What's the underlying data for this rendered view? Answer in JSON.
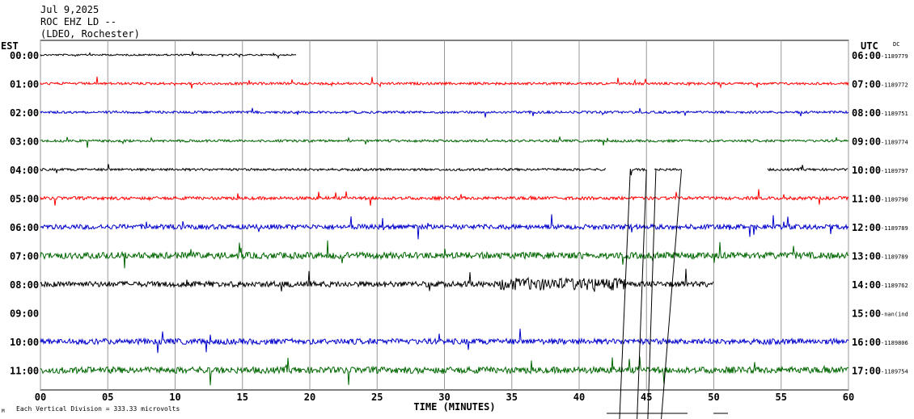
{
  "header": {
    "date": "Jul 9,2025",
    "station": "ROC EHZ LD --",
    "network": "(LDEO, Rochester)"
  },
  "labels": {
    "left_tz": "EST",
    "right_tz": "UTC",
    "dc": "DC",
    "xlabel": "TIME (MINUTES)",
    "scale_note": "Each Vertical Division =  333.33 microvolts",
    "corner_mark": "M"
  },
  "chart_data": {
    "type": "line",
    "title": "",
    "xlabel": "TIME (MINUTES)",
    "xlim": [
      0,
      60
    ],
    "x_ticks": [
      "00",
      "05",
      "10",
      "15",
      "20",
      "25",
      "30",
      "35",
      "40",
      "45",
      "50",
      "55",
      "60"
    ],
    "grid": true,
    "rows": [
      {
        "left": "00:00",
        "right": "06:00",
        "dc": "-1189779",
        "color": "#000000",
        "amp": 2,
        "segments": [
          [
            0,
            19
          ]
        ]
      },
      {
        "left": "01:00",
        "right": "07:00",
        "dc": "-1189772",
        "color": "#ff0000",
        "amp": 3,
        "segments": [
          [
            0,
            60
          ]
        ]
      },
      {
        "left": "02:00",
        "right": "08:00",
        "dc": "-1189751",
        "color": "#0000cc",
        "amp": 3,
        "segments": [
          [
            0,
            60
          ]
        ]
      },
      {
        "left": "03:00",
        "right": "09:00",
        "dc": "-1189774",
        "color": "#006600",
        "amp": 3,
        "segments": [
          [
            0,
            60
          ]
        ]
      },
      {
        "left": "04:00",
        "right": "10:00",
        "dc": "-1189797",
        "color": "#000000",
        "amp": 3,
        "segments": [
          [
            0,
            42.0
          ],
          [
            43.8,
            45.0
          ],
          [
            45.6,
            47.6
          ],
          [
            54,
            60
          ]
        ]
      },
      {
        "left": "05:00",
        "right": "11:00",
        "dc": "-1189790",
        "color": "#ff0000",
        "amp": 4,
        "segments": [
          [
            0,
            60
          ]
        ]
      },
      {
        "left": "06:00",
        "right": "12:00",
        "dc": "-1189789",
        "color": "#0000cc",
        "amp": 6,
        "segments": [
          [
            0,
            60
          ]
        ]
      },
      {
        "left": "07:00",
        "right": "13:00",
        "dc": "-1189789",
        "color": "#006600",
        "amp": 8,
        "segments": [
          [
            0,
            60
          ]
        ]
      },
      {
        "left": "08:00",
        "right": "14:00",
        "dc": "-1189762",
        "color": "#000000",
        "amp": 7,
        "segments": [
          [
            0,
            50
          ]
        ]
      },
      {
        "left": "09:00",
        "right": "15:00",
        "dc": "-nan(ind",
        "color": "#0000cc",
        "amp": 0,
        "segments": []
      },
      {
        "left": "10:00",
        "right": "16:00",
        "dc": "-1189806",
        "color": "#0000cc",
        "amp": 7,
        "segments": [
          [
            0,
            60
          ]
        ]
      },
      {
        "left": "11:00",
        "right": "17:00",
        "dc": "-1189754",
        "color": "#006600",
        "amp": 8,
        "segments": [
          [
            0,
            60
          ]
        ]
      }
    ]
  }
}
